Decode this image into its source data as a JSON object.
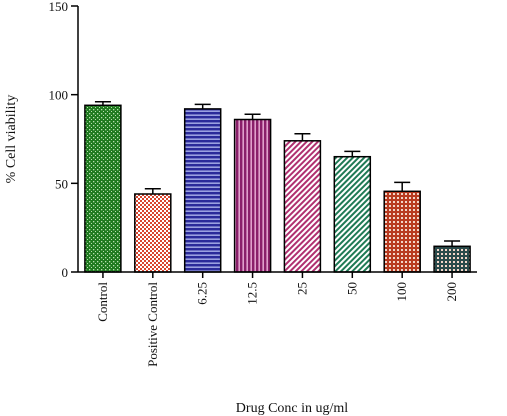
{
  "chart_data": {
    "type": "bar",
    "xlabel": "Drug Conc in ug/ml",
    "ylabel": "% Cell viability",
    "ylim": [
      0,
      150
    ],
    "yticks": [
      "0",
      "50",
      "100",
      "150"
    ],
    "grid": false,
    "legend": "none",
    "categories": [
      "Control",
      "Positive Control",
      "6.25",
      "12.5",
      "25",
      "50",
      "100",
      "200"
    ],
    "values": [
      94,
      44,
      92,
      86,
      74,
      65,
      45.5,
      14.5
    ],
    "error_bars": [
      2,
      3,
      2.5,
      3,
      4,
      3,
      5,
      3
    ],
    "bar_colors": [
      "#1f7a1f",
      "#d9452f",
      "#2a2a9a",
      "#8a1f6a",
      "#b03070",
      "#1f7a55",
      "#b83a1f",
      "#2a4a4a"
    ],
    "bar_patterns": [
      "dots",
      "checker",
      "hlines",
      "vlines",
      "diagonal",
      "diagonal",
      "grid",
      "grid"
    ]
  }
}
